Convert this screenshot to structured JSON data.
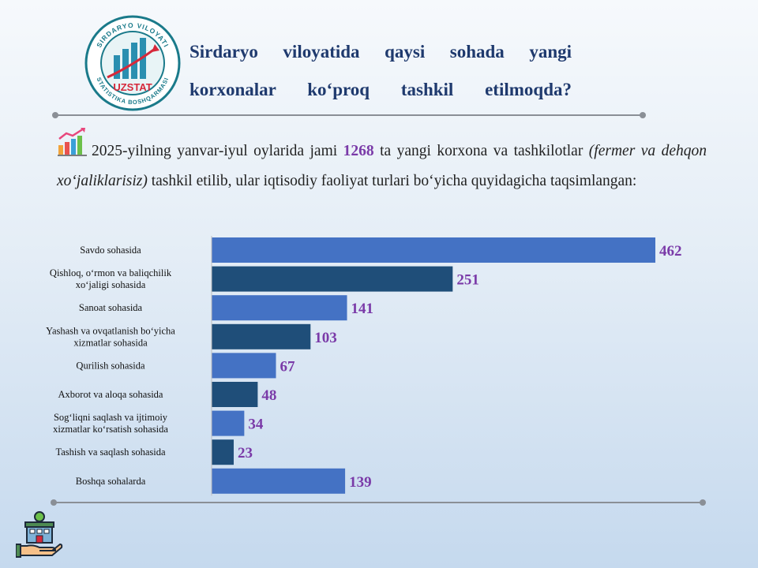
{
  "header": {
    "logo": {
      "text_top": "SIRDARYO VILOYATI",
      "text_bottom": "STATISTIKA BOSHQARMASI",
      "brand": "UZSTAT"
    },
    "title": "Sirdaryo viloyatida qaysi sohada yangi korxonalar ko‘proq tashkil etilmoqda?"
  },
  "intro": {
    "text_before": "2025-yilning yanvar-iyul oylarida jami ",
    "total": "1268",
    "text_middle": " ta yangi korxona va tashkilotlar ",
    "note": "(fermer va dehqon xo‘jaliklarisiz)",
    "text_after": " tashkil etilib, ular iqtisodiy faoliyat turlari bo‘yicha quyidagicha taqsimlangan:"
  },
  "icons": {
    "trend": "growth-chart-icon",
    "footer": "building-in-hand-icon"
  },
  "colors": {
    "title": "#1f3a6e",
    "bar_light": "#4472c4",
    "bar_dark": "#1f4e79",
    "value_label": "#7a3aa8",
    "logo_teal": "#1a7a8a",
    "logo_red": "#d6283a"
  },
  "chart_data": {
    "type": "bar",
    "orientation": "horizontal",
    "categories": [
      [
        "Savdo sohasida"
      ],
      [
        "Qishloq,  o‘rmon  va  baliqchilik",
        "xo‘jaligi  sohasida"
      ],
      [
        "Sanoat sohasida"
      ],
      [
        "Yashash  va  ovqatlanish  bo‘yicha",
        "xizmatlar  sohasida"
      ],
      [
        "Qurilish  sohasida"
      ],
      [
        "Axborot va aloqa sohasida"
      ],
      [
        "Sog‘liqni  saqlash  va ijtimoiy",
        "xizmatlar  ko‘rsatish  sohasida"
      ],
      [
        "Tashish  va saqlash sohasida"
      ],
      [
        "Boshqa sohalarda"
      ]
    ],
    "values": [
      462,
      251,
      141,
      103,
      67,
      48,
      34,
      23,
      139
    ],
    "bar_colors": [
      "#4472c4",
      "#1f4e79",
      "#4472c4",
      "#1f4e79",
      "#4472c4",
      "#1f4e79",
      "#4472c4",
      "#1f4e79",
      "#4472c4"
    ],
    "data_labels": true,
    "xlim": [
      0,
      462
    ],
    "grid": false,
    "legend": "none"
  }
}
